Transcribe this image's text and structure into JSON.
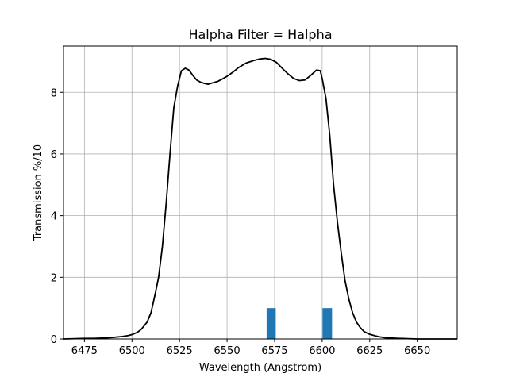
{
  "chart_data": {
    "type": "line",
    "title": "Halpha Filter = Halpha",
    "xlabel": "Wavelength (Angstrom)",
    "ylabel": "Transmission %/10",
    "xlim": [
      6464,
      6671
    ],
    "ylim": [
      0,
      9.5
    ],
    "grid": true,
    "xticks": [
      6475,
      6500,
      6525,
      6550,
      6575,
      6600,
      6625,
      6650
    ],
    "yticks": [
      0,
      2,
      4,
      6,
      8
    ],
    "colors": {
      "line": "#000000",
      "bar": "#1f77b4",
      "grid": "#b0b0b0"
    },
    "series": [
      {
        "x": [
          6464,
          6470,
          6475,
          6480,
          6485,
          6490,
          6495,
          6498,
          6500,
          6503,
          6505,
          6508,
          6510,
          6512,
          6514,
          6516,
          6518,
          6520,
          6522,
          6524,
          6526,
          6528,
          6530,
          6532,
          6534,
          6536,
          6538,
          6540,
          6542,
          6545,
          6548,
          6550,
          6553,
          6556,
          6560,
          6564,
          6567,
          6570,
          6573,
          6576,
          6579,
          6582,
          6585,
          6588,
          6591,
          6594,
          6597,
          6599,
          6600,
          6602,
          6604,
          6606,
          6608,
          6610,
          6612,
          6614,
          6616,
          6618,
          6620,
          6622,
          6625,
          6628,
          6630,
          6633,
          6636,
          6640,
          6645,
          6650,
          6660,
          6671
        ],
        "y": [
          0.0,
          0.01,
          0.02,
          0.02,
          0.03,
          0.05,
          0.08,
          0.11,
          0.14,
          0.22,
          0.32,
          0.55,
          0.85,
          1.4,
          2.0,
          3.0,
          4.4,
          6.0,
          7.5,
          8.2,
          8.7,
          8.78,
          8.72,
          8.55,
          8.4,
          8.33,
          8.29,
          8.26,
          8.3,
          8.35,
          8.45,
          8.52,
          8.65,
          8.8,
          8.95,
          9.03,
          9.08,
          9.1,
          9.07,
          8.97,
          8.78,
          8.6,
          8.45,
          8.38,
          8.4,
          8.55,
          8.72,
          8.7,
          8.45,
          7.8,
          6.6,
          5.0,
          3.8,
          2.8,
          1.9,
          1.3,
          0.85,
          0.55,
          0.37,
          0.24,
          0.15,
          0.1,
          0.07,
          0.04,
          0.03,
          0.02,
          0.01,
          0.0,
          0.0,
          0.0
        ]
      }
    ],
    "bars": [
      {
        "x0": 6570.8,
        "x1": 6575.6,
        "value": 1.0
      },
      {
        "x0": 6600.2,
        "x1": 6605.2,
        "value": 1.0
      }
    ]
  }
}
